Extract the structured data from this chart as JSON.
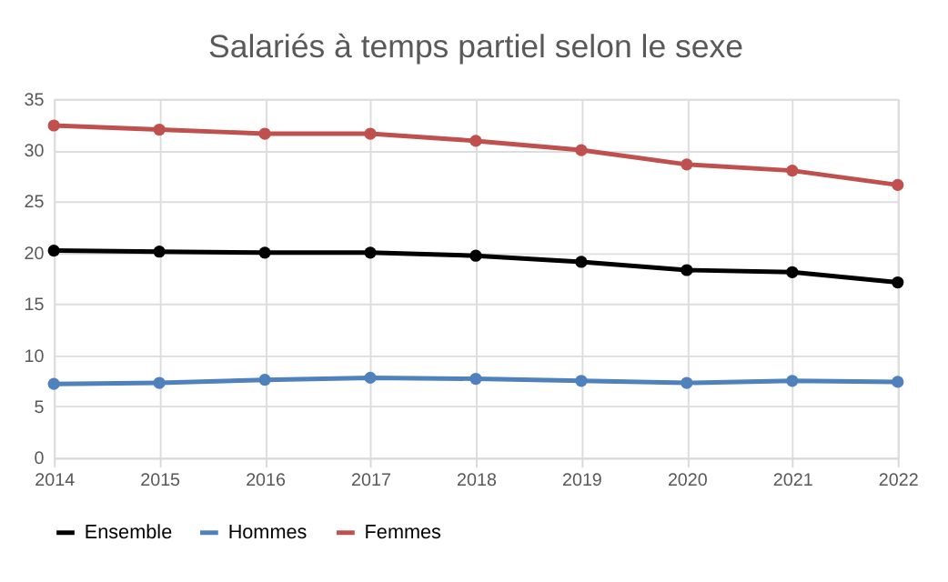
{
  "chart_data": {
    "type": "line",
    "title": "Salariés à temps partiel selon le sexe",
    "categories": [
      "2014",
      "2015",
      "2016",
      "2017",
      "2018",
      "2019",
      "2020",
      "2021",
      "2022"
    ],
    "series": [
      {
        "name": "Ensemble",
        "color": "#000000",
        "values": [
          20.2,
          20.1,
          20.0,
          20.0,
          19.7,
          19.1,
          18.3,
          18.1,
          17.1
        ]
      },
      {
        "name": "Hommes",
        "color": "#4f81bd",
        "values": [
          7.2,
          7.3,
          7.6,
          7.8,
          7.7,
          7.5,
          7.3,
          7.5,
          7.4
        ]
      },
      {
        "name": "Femmes",
        "color": "#c0504d",
        "values": [
          32.4,
          32.0,
          31.6,
          31.6,
          30.9,
          30.0,
          28.6,
          28.0,
          26.6
        ]
      }
    ],
    "ylim": [
      0,
      35
    ],
    "yticks": [
      0,
      5,
      10,
      15,
      20,
      25,
      30,
      35
    ],
    "grid": true,
    "legend": "bottom",
    "marker": "circle",
    "line_style": "solid"
  }
}
